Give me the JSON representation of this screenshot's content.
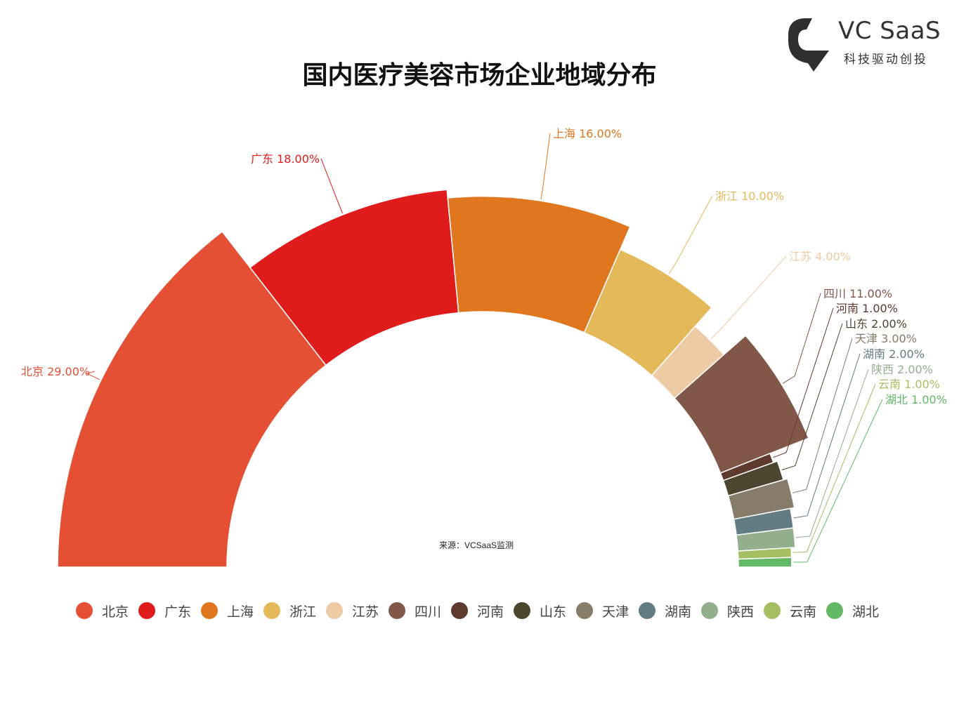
{
  "logo": {
    "brand": "VC SaaS",
    "tagline": "科技驱动创投"
  },
  "source": "来源：VCSaaS监测",
  "chart_data": {
    "type": "pie",
    "title": "国内医疗美容市场企业地域分布",
    "categories": [
      "北京",
      "广东",
      "上海",
      "浙江",
      "江苏",
      "四川",
      "河南",
      "山东",
      "天津",
      "湖南",
      "陕西",
      "云南",
      "湖北"
    ],
    "values": [
      29.0,
      18.0,
      16.0,
      10.0,
      4.0,
      11.0,
      1.0,
      2.0,
      3.0,
      2.0,
      2.0,
      1.0,
      1.0
    ],
    "data_labels": [
      "北京 29.00%",
      "广东 18.00%",
      "上海 16.00%",
      "浙江 10.00%",
      "江苏 4.00%",
      "四川 11.00%",
      "河南 1.00%",
      "山东 2.00%",
      "天津 3.00%",
      "湖南 2.00%",
      "陕西 2.00%",
      "云南 1.00%",
      "湖北 1.00%"
    ],
    "colors": [
      "#E55035",
      "#E01B1C",
      "#E0771F",
      "#E4B95A",
      "#EECBA5",
      "#81574A",
      "#5E3A2E",
      "#4C4631",
      "#877C6A",
      "#637B82",
      "#93AF8E",
      "#A5BE62",
      "#62B864"
    ],
    "label_colors": [
      "#E55035",
      "#E01B1C",
      "#E0771F",
      "#E4B95A",
      "#EECBA5",
      "#81574A",
      "#5E3A2E",
      "#4C4631",
      "#877C6A",
      "#637B82",
      "#93AF8E",
      "#A5BE62",
      "#62B864"
    ],
    "layout": "half-donut (semicircle, rose radius)",
    "legend": {
      "position": "bottom",
      "items": [
        "北京",
        "广东",
        "上海",
        "浙江",
        "江苏",
        "四川",
        "河南",
        "山东",
        "天津",
        "湖南",
        "陕西",
        "云南",
        "湖北"
      ]
    }
  }
}
